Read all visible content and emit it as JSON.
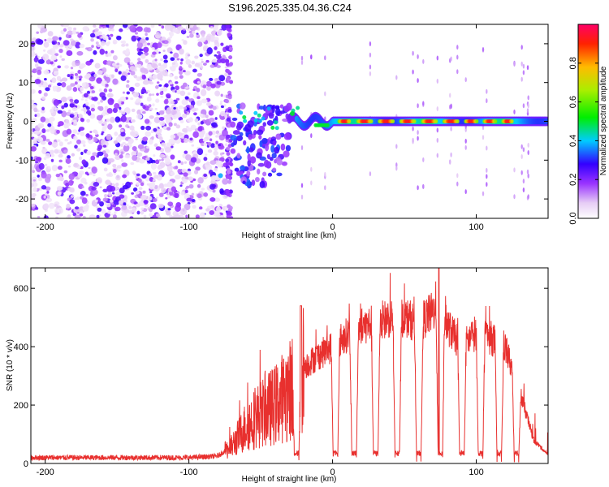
{
  "chart_data": [
    {
      "type": "heatmap",
      "title": "S196.2025.335.04.36.C24",
      "xlabel": "Height of straight line (km)",
      "ylabel": "Frequency (Hz)",
      "xlim": [
        -210,
        150
      ],
      "ylim": [
        -25,
        25
      ],
      "xticks": [
        -200,
        -100,
        0,
        100
      ],
      "yticks": [
        -20,
        -10,
        0,
        10,
        20
      ],
      "colorbar": {
        "label": "Normalized spectral amplitude",
        "range": [
          0,
          1
        ],
        "ticks": [
          "0.0",
          "0.2",
          "0.4",
          "0.6",
          "0.8"
        ],
        "tick_values": [
          0,
          0.2,
          0.4,
          0.6,
          0.8
        ]
      },
      "features": [
        {
          "name": "noise-region",
          "x_range": [
            -210,
            -72
          ],
          "description": "random low-amplitude speckle"
        },
        {
          "name": "vertical-streak",
          "x": -72,
          "freq_range": [
            -25,
            25
          ]
        },
        {
          "name": "transition-blobs",
          "x_range": [
            -70,
            -30
          ],
          "freq_range": [
            -16,
            6
          ]
        },
        {
          "name": "main-signal-line",
          "x_range": [
            -25,
            150
          ],
          "freq": 0
        }
      ]
    },
    {
      "type": "line",
      "xlabel": "Height of straight line (km)",
      "ylabel": "SNR (10 * v/v)",
      "xlim": [
        -210,
        150
      ],
      "ylim": [
        0,
        670
      ],
      "xticks": [
        -200,
        -100,
        0,
        100
      ],
      "yticks": [
        0,
        200,
        400,
        600
      ],
      "color": "#e8302e",
      "series": [
        {
          "name": "SNR",
          "x": [
            -210,
            -150,
            -100,
            -80,
            -70,
            -60,
            -50,
            -40,
            -30,
            -20,
            -10,
            0,
            10,
            20,
            30,
            40,
            50,
            60,
            70,
            75,
            80,
            90,
            100,
            110,
            120,
            130,
            140,
            150
          ],
          "values": [
            20,
            20,
            20,
            25,
            60,
            130,
            170,
            200,
            250,
            330,
            370,
            400,
            440,
            470,
            480,
            500,
            500,
            480,
            520,
            600,
            470,
            400,
            450,
            430,
            400,
            250,
            80,
            30
          ],
          "dropouts": [
            -25,
            2,
            15,
            30,
            45,
            60,
            75,
            90,
            103,
            116,
            128
          ]
        }
      ]
    }
  ]
}
